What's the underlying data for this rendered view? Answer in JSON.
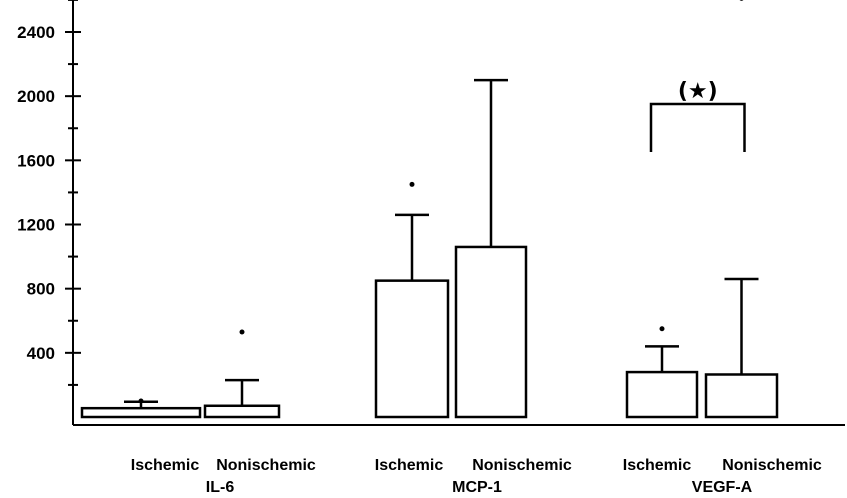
{
  "chart_data": {
    "type": "bar",
    "title": "",
    "xlabel": "",
    "ylabel": "",
    "ylim": [
      0,
      2600
    ],
    "yticks": [
      400,
      800,
      1200,
      1600,
      2000,
      2400
    ],
    "y_minor_step": 200,
    "groups": [
      {
        "name": "IL-6",
        "bars": [
          {
            "category": "Ischemic",
            "value": 55,
            "error_upper": 95,
            "outliers": [
              100
            ]
          },
          {
            "category": "Nonischemic",
            "value": 70,
            "error_upper": 230,
            "outliers": [
              530
            ]
          }
        ]
      },
      {
        "name": "MCP-1",
        "bars": [
          {
            "category": "Ischemic",
            "value": 850,
            "error_upper": 1260,
            "outliers": [
              1450
            ]
          },
          {
            "category": "Nonischemic",
            "value": 1060,
            "error_upper": 2100,
            "outliers": []
          }
        ]
      },
      {
        "name": "VEGF-A",
        "bars": [
          {
            "category": "Ischemic",
            "value": 280,
            "error_upper": 440,
            "outliers": [
              550
            ]
          },
          {
            "category": "Nonischemic",
            "value": 265,
            "error_upper": 860,
            "outliers": [
              2610
            ]
          }
        ],
        "significance": "(★)"
      }
    ]
  }
}
